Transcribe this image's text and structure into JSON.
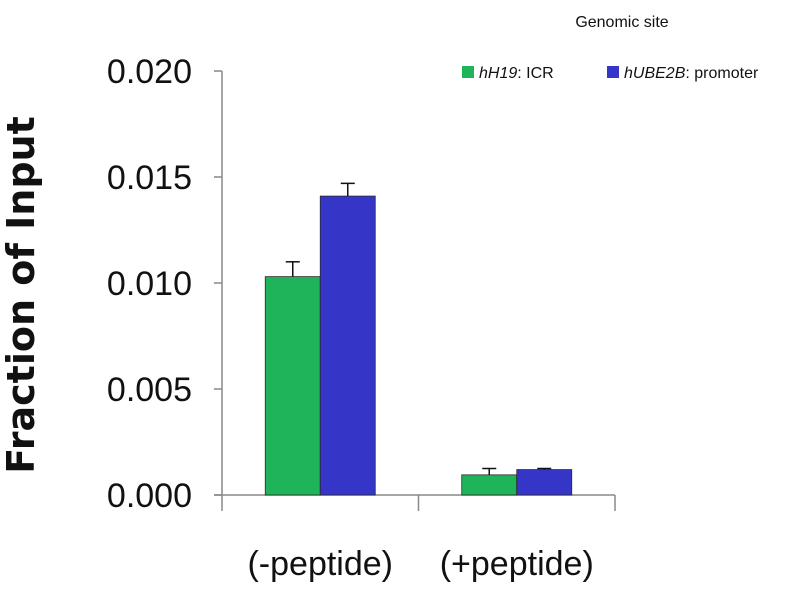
{
  "chart_data": {
    "type": "bar",
    "title": "",
    "legend_title": "Genomic site",
    "legend_position": "top-right",
    "ylabel": "Fraction of  Input",
    "xlabel": "",
    "ylim": [
      0,
      0.02
    ],
    "yticks": [
      "0.000",
      "0.005",
      "0.010",
      "0.015",
      "0.020"
    ],
    "categories": [
      "(-peptide)",
      "(+peptide)"
    ],
    "grid": false,
    "series": [
      {
        "name_italic": "hH19",
        "name_rest": ": ICR",
        "color": "#1fb35a",
        "values": [
          0.0103,
          0.00095
        ],
        "errors": [
          0.0007,
          0.0003
        ]
      },
      {
        "name_italic": "hUBE2B",
        "name_rest": ": promoter",
        "color": "#3535c8",
        "values": [
          0.0141,
          0.0012
        ],
        "errors": [
          0.0006,
          5e-05
        ]
      }
    ]
  }
}
